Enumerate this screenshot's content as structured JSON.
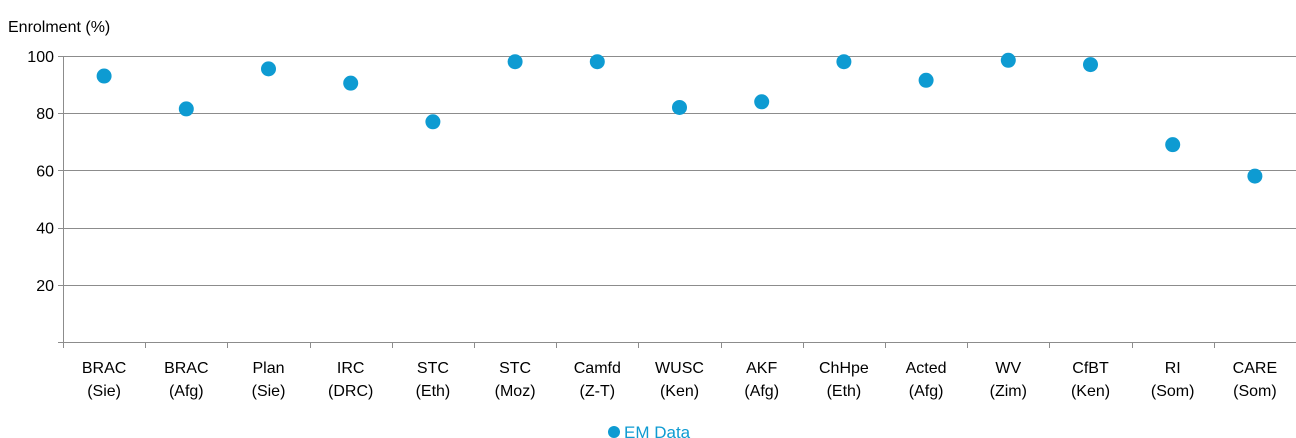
{
  "chart_data": {
    "type": "scatter",
    "ylabel": "Enrolment (%)",
    "xlabel": "",
    "ylim": [
      0,
      100
    ],
    "yticks": [
      20,
      40,
      60,
      80,
      100
    ],
    "grid": true,
    "legend_position": "bottom",
    "categories": [
      [
        "BRAC",
        "(Sie)"
      ],
      [
        "BRAC",
        "(Afg)"
      ],
      [
        "Plan",
        "(Sie)"
      ],
      [
        "IRC",
        "(DRC)"
      ],
      [
        "STC",
        "(Eth)"
      ],
      [
        "STC",
        "(Moz)"
      ],
      [
        "Camfd",
        "(Z-T)"
      ],
      [
        "WUSC",
        "(Ken)"
      ],
      [
        "AKF",
        "(Afg)"
      ],
      [
        "ChHpe",
        "(Eth)"
      ],
      [
        "Acted",
        "(Afg)"
      ],
      [
        "WV",
        "(Zim)"
      ],
      [
        "CfBT",
        "(Ken)"
      ],
      [
        "RI",
        "(Som)"
      ],
      [
        "CARE",
        "(Som)"
      ]
    ],
    "series": [
      {
        "name": "EM Data",
        "color": "#0e9bd2",
        "values": [
          93,
          81.5,
          95.5,
          90.5,
          77,
          98,
          98,
          82,
          84,
          98,
          91.5,
          98.5,
          97,
          69,
          58
        ]
      }
    ]
  }
}
